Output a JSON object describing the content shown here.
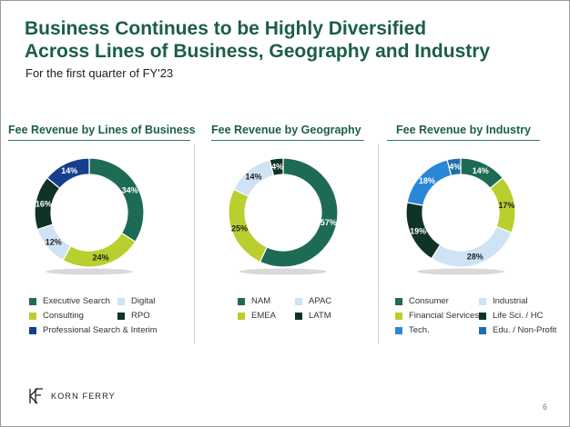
{
  "header": {
    "title_line1": "Business Continues to be Highly Diversified",
    "title_line2": "Across Lines of Business, Geography and Industry",
    "subtitle": "For the first quarter of FY'23"
  },
  "footer": {
    "brand": "KORN FERRY",
    "page_number": "6"
  },
  "chart_data": [
    {
      "type": "pie",
      "title": "Fee Revenue by Lines of Business",
      "slices": [
        {
          "label": "Executive Search",
          "value": 34,
          "label_text": "34%",
          "color": "#1e6b55"
        },
        {
          "label": "Consulting",
          "value": 24,
          "label_text": "24%",
          "color": "#b8cf2e"
        },
        {
          "label": "Digital",
          "value": 12,
          "label_text": "12%",
          "color": "#cfe3f4"
        },
        {
          "label": "RPO",
          "value": 16,
          "label_text": "16%",
          "color": "#0f3325"
        },
        {
          "label": "Professional Search & Interim",
          "value": 14,
          "label_text": "14%",
          "color": "#173f8c"
        }
      ]
    },
    {
      "type": "pie",
      "title": "Fee Revenue by Geography",
      "slices": [
        {
          "label": "NAM",
          "value": 57,
          "label_text": "57%",
          "color": "#1e6b55"
        },
        {
          "label": "EMEA",
          "value": 25,
          "label_text": "25%",
          "color": "#b8cf2e"
        },
        {
          "label": "APAC",
          "value": 14,
          "label_text": "14%",
          "color": "#cfe3f4"
        },
        {
          "label": "LATM",
          "value": 4,
          "label_text": "4%",
          "color": "#0f3325"
        }
      ]
    },
    {
      "type": "pie",
      "title": "Fee Revenue by Industry",
      "slices": [
        {
          "label": "Consumer",
          "value": 14,
          "label_text": "14%",
          "color": "#1e6b55"
        },
        {
          "label": "Financial Services",
          "value": 17,
          "label_text": "17%",
          "color": "#b8cf2e"
        },
        {
          "label": "Industrial",
          "value": 28,
          "label_text": "28%",
          "color": "#cfe3f4"
        },
        {
          "label": "Life Sci. / HC",
          "value": 19,
          "label_text": "19%",
          "color": "#0f3325"
        },
        {
          "label": "Tech.",
          "value": 18,
          "label_text": "18%",
          "color": "#2b86d6"
        },
        {
          "label": "Edu. / Non-Profit",
          "value": 4,
          "label_text": "4%",
          "color": "#1f6fa8"
        }
      ]
    }
  ]
}
